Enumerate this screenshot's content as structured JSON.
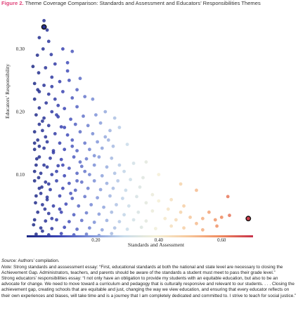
{
  "figure": {
    "number": "Figure 2.",
    "title": "Theme Coverage Comparison: Standards and Assessment and Educators’ Responsibilities Themes"
  },
  "chart_data": {
    "type": "scatter",
    "xlabel": "Standards and Assessment",
    "ylabel": "Educators’ Responsibility",
    "xlim": [
      -0.02,
      0.7
    ],
    "ylim": [
      0.0,
      0.36
    ],
    "xticks": [
      0.2,
      0.4,
      0.6
    ],
    "xtick_labels": [
      "0.20",
      "0.40",
      "0.60"
    ],
    "yticks": [
      0.1,
      0.2,
      0.3
    ],
    "ytick_labels": [
      "0.10",
      "0.20",
      "0.30"
    ],
    "grid": false,
    "legend": "none",
    "color_scale": {
      "encodes": "x",
      "stops": [
        "#1f2a86",
        "#3a44b4",
        "#7e93d8",
        "#c9dcea",
        "#f4efd6",
        "#f6c79a",
        "#ef8a5e",
        "#c8324a"
      ],
      "range": [
        0.0,
        0.7
      ]
    },
    "highlighted_points": [
      {
        "x": 0.035,
        "y": 0.335,
        "label": "Strong educators’ responsibilities essay"
      },
      {
        "x": 0.685,
        "y": 0.03,
        "label": "Strong standards and assessment essay"
      }
    ],
    "points": [
      [
        0.035,
        0.345
      ],
      [
        0.045,
        0.33
      ],
      [
        0.02,
        0.318
      ],
      [
        0.05,
        0.312
      ],
      [
        0.032,
        0.3
      ],
      [
        0.014,
        0.29
      ],
      [
        0.058,
        0.291
      ],
      [
        0.095,
        0.3
      ],
      [
        0.125,
        0.296
      ],
      [
        0.0,
        0.272
      ],
      [
        0.04,
        0.27
      ],
      [
        0.07,
        0.276
      ],
      [
        0.11,
        0.278
      ],
      [
        0.018,
        0.262
      ],
      [
        0.06,
        0.255
      ],
      [
        0.005,
        0.245
      ],
      [
        0.035,
        0.242
      ],
      [
        0.085,
        0.248
      ],
      [
        0.115,
        0.25
      ],
      [
        0.15,
        0.253
      ],
      [
        0.02,
        0.232
      ],
      [
        0.05,
        0.228
      ],
      [
        0.095,
        0.232
      ],
      [
        0.005,
        0.22
      ],
      [
        0.042,
        0.214
      ],
      [
        0.07,
        0.22
      ],
      [
        0.125,
        0.222
      ],
      [
        0.165,
        0.224
      ],
      [
        0.02,
        0.206
      ],
      [
        0.06,
        0.2
      ],
      [
        0.1,
        0.205
      ],
      [
        0.14,
        0.208
      ],
      [
        0.01,
        0.195
      ],
      [
        0.035,
        0.19
      ],
      [
        0.08,
        0.192
      ],
      [
        0.12,
        0.188
      ],
      [
        0.16,
        0.193
      ],
      [
        0.2,
        0.195
      ],
      [
        0.23,
        0.2
      ],
      [
        0.02,
        0.18
      ],
      [
        0.05,
        0.178
      ],
      [
        0.09,
        0.176
      ],
      [
        0.135,
        0.18
      ],
      [
        0.175,
        0.178
      ],
      [
        0.215,
        0.182
      ],
      [
        0.005,
        0.168
      ],
      [
        0.03,
        0.17
      ],
      [
        0.07,
        0.165
      ],
      [
        0.11,
        0.163
      ],
      [
        0.15,
        0.168
      ],
      [
        0.19,
        0.165
      ],
      [
        0.245,
        0.17
      ],
      [
        0.275,
        0.175
      ],
      [
        0.015,
        0.155
      ],
      [
        0.045,
        0.152
      ],
      [
        0.085,
        0.15
      ],
      [
        0.125,
        0.155
      ],
      [
        0.165,
        0.15
      ],
      [
        0.205,
        0.152
      ],
      [
        0.24,
        0.155
      ],
      [
        0.005,
        0.14
      ],
      [
        0.035,
        0.142
      ],
      [
        0.065,
        0.138
      ],
      [
        0.1,
        0.14
      ],
      [
        0.14,
        0.138
      ],
      [
        0.18,
        0.14
      ],
      [
        0.22,
        0.142
      ],
      [
        0.255,
        0.145
      ],
      [
        0.3,
        0.148
      ],
      [
        0.02,
        0.128
      ],
      [
        0.055,
        0.126
      ],
      [
        0.09,
        0.124
      ],
      [
        0.13,
        0.128
      ],
      [
        0.17,
        0.125
      ],
      [
        0.21,
        0.128
      ],
      [
        0.25,
        0.126
      ],
      [
        0.01,
        0.115
      ],
      [
        0.045,
        0.112
      ],
      [
        0.08,
        0.114
      ],
      [
        0.115,
        0.11
      ],
      [
        0.155,
        0.113
      ],
      [
        0.195,
        0.115
      ],
      [
        0.235,
        0.112
      ],
      [
        0.275,
        0.115
      ],
      [
        0.32,
        0.118
      ],
      [
        0.025,
        0.102
      ],
      [
        0.06,
        0.1
      ],
      [
        0.1,
        0.098
      ],
      [
        0.14,
        0.102
      ],
      [
        0.18,
        0.1
      ],
      [
        0.22,
        0.098
      ],
      [
        0.26,
        0.102
      ],
      [
        0.29,
        0.105
      ],
      [
        0.005,
        0.09
      ],
      [
        0.04,
        0.088
      ],
      [
        0.075,
        0.09
      ],
      [
        0.115,
        0.086
      ],
      [
        0.155,
        0.088
      ],
      [
        0.195,
        0.09
      ],
      [
        0.235,
        0.086
      ],
      [
        0.27,
        0.09
      ],
      [
        0.31,
        0.092
      ],
      [
        0.35,
        0.095
      ],
      [
        0.02,
        0.078
      ],
      [
        0.055,
        0.076
      ],
      [
        0.095,
        0.078
      ],
      [
        0.135,
        0.075
      ],
      [
        0.175,
        0.078
      ],
      [
        0.215,
        0.076
      ],
      [
        0.255,
        0.078
      ],
      [
        0.295,
        0.075
      ],
      [
        0.34,
        0.08
      ],
      [
        0.01,
        0.066
      ],
      [
        0.045,
        0.064
      ],
      [
        0.085,
        0.066
      ],
      [
        0.125,
        0.062
      ],
      [
        0.165,
        0.065
      ],
      [
        0.205,
        0.063
      ],
      [
        0.245,
        0.066
      ],
      [
        0.285,
        0.062
      ],
      [
        0.33,
        0.065
      ],
      [
        0.38,
        0.068
      ],
      [
        0.03,
        0.052
      ],
      [
        0.065,
        0.05
      ],
      [
        0.105,
        0.053
      ],
      [
        0.145,
        0.05
      ],
      [
        0.185,
        0.052
      ],
      [
        0.225,
        0.048
      ],
      [
        0.265,
        0.052
      ],
      [
        0.305,
        0.05
      ],
      [
        0.36,
        0.055
      ],
      [
        0.4,
        0.058
      ],
      [
        0.015,
        0.04
      ],
      [
        0.05,
        0.038
      ],
      [
        0.09,
        0.04
      ],
      [
        0.13,
        0.036
      ],
      [
        0.17,
        0.039
      ],
      [
        0.21,
        0.037
      ],
      [
        0.25,
        0.04
      ],
      [
        0.29,
        0.036
      ],
      [
        0.335,
        0.04
      ],
      [
        0.38,
        0.042
      ],
      [
        0.43,
        0.045
      ],
      [
        0.47,
        0.04
      ],
      [
        0.005,
        0.028
      ],
      [
        0.04,
        0.026
      ],
      [
        0.075,
        0.028
      ],
      [
        0.115,
        0.025
      ],
      [
        0.155,
        0.027
      ],
      [
        0.195,
        0.024
      ],
      [
        0.235,
        0.027
      ],
      [
        0.275,
        0.025
      ],
      [
        0.32,
        0.028
      ],
      [
        0.36,
        0.026
      ],
      [
        0.42,
        0.03
      ],
      [
        0.455,
        0.028
      ],
      [
        0.5,
        0.032
      ],
      [
        0.025,
        0.015
      ],
      [
        0.06,
        0.014
      ],
      [
        0.1,
        0.016
      ],
      [
        0.14,
        0.013
      ],
      [
        0.18,
        0.015
      ],
      [
        0.22,
        0.012
      ],
      [
        0.26,
        0.015
      ],
      [
        0.3,
        0.013
      ],
      [
        0.345,
        0.016
      ],
      [
        0.39,
        0.014
      ],
      [
        0.44,
        0.018
      ],
      [
        0.48,
        0.015
      ],
      [
        0.52,
        0.022
      ],
      [
        0.54,
        0.03
      ],
      [
        0.56,
        0.04
      ],
      [
        0.58,
        0.028
      ],
      [
        0.6,
        0.032
      ],
      [
        0.62,
        0.065
      ],
      [
        0.625,
        0.035
      ],
      [
        0.47,
        0.085
      ],
      [
        0.54,
        0.012
      ],
      [
        0.585,
        0.018
      ],
      [
        0.44,
        0.06
      ],
      [
        0.52,
        0.075
      ],
      [
        0.36,
        0.12
      ],
      [
        0.4,
        0.1
      ],
      [
        0.48,
        0.05
      ],
      [
        0.01,
        0.005
      ],
      [
        0.05,
        0.004
      ],
      [
        0.09,
        0.006
      ],
      [
        0.13,
        0.004
      ],
      [
        0.17,
        0.005
      ],
      [
        0.21,
        0.003
      ],
      [
        0.25,
        0.006
      ],
      [
        0.03,
        0.185
      ],
      [
        0.06,
        0.24
      ],
      [
        0.08,
        0.21
      ],
      [
        0.1,
        0.175
      ],
      [
        0.125,
        0.145
      ],
      [
        0.15,
        0.12
      ],
      [
        0.11,
        0.265
      ],
      [
        0.015,
        0.235
      ],
      [
        0.005,
        0.15
      ],
      [
        0.075,
        0.105
      ],
      [
        0.045,
        0.06
      ],
      [
        0.065,
        0.135
      ],
      [
        0.035,
        0.115
      ],
      [
        0.095,
        0.115
      ],
      [
        0.05,
        0.085
      ],
      [
        0.025,
        0.07
      ],
      [
        0.008,
        0.055
      ],
      [
        0.12,
        0.07
      ],
      [
        0.085,
        0.045
      ],
      [
        0.06,
        0.03
      ],
      [
        0.03,
        0.01
      ],
      [
        0.14,
        0.09
      ],
      [
        0.165,
        0.105
      ],
      [
        0.195,
        0.13
      ],
      [
        0.23,
        0.16
      ],
      [
        0.26,
        0.19
      ],
      [
        0.19,
        0.22
      ],
      [
        0.14,
        0.235
      ],
      [
        0.075,
        0.195
      ],
      [
        0.04,
        0.16
      ],
      [
        0.02,
        0.145
      ],
      [
        0.012,
        0.125
      ],
      [
        0.005,
        0.105
      ],
      [
        0.018,
        0.095
      ],
      [
        0.028,
        0.08
      ],
      [
        0.038,
        0.045
      ],
      [
        0.002,
        0.02
      ]
    ]
  },
  "note": {
    "source_label": "Source:",
    "source_text": " Authors’ compilation.",
    "note_label": "Note:",
    "note_text": " Strong standards and asssessment essay: “First, educational standards at both the national and state level are necessary to closing the Achievement Gap. Administrators, teachers, and parents should be aware of the standards a student must meet to pass their grade level.”",
    "note_text2": "Strong educators’ responsibilities essay: “I not only have an obligation to provide my students with an equitable education, but also to be an advocate for change. We need to move toward a curriculum and pedagogy that is culturally responsive and relevant to our students. . . . Closing the achievement gap, creating schools that are equitable and just, changing the way we view education, and ensuring that every educator reflects on their own experiences and biases, will take time and is a journey that I am completely dedicated and committed to. I strive to teach for social justice.”"
  }
}
